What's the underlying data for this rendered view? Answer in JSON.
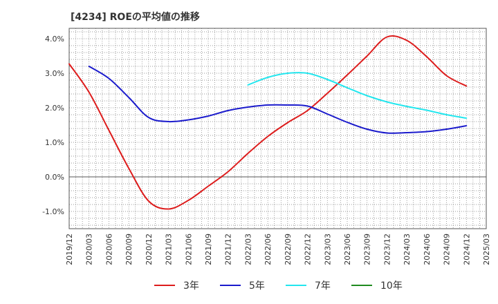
{
  "chart_data": {
    "type": "line",
    "title": "[4234]  ROEの平均値の推移",
    "xlabel": "",
    "ylabel": "",
    "ylim": [
      -1.5,
      4.3
    ],
    "yticks": [
      4.0,
      3.0,
      2.0,
      1.0,
      0.0,
      -1.0
    ],
    "ytick_labels": [
      "4.0%",
      "3.0%",
      "2.0%",
      "1.0%",
      "0.0%",
      "-1.0%"
    ],
    "x_labels": [
      "2019/12",
      "2020/03",
      "2020/06",
      "2020/09",
      "2020/12",
      "2021/03",
      "2021/06",
      "2021/09",
      "2021/12",
      "2022/03",
      "2022/06",
      "2022/09",
      "2022/12",
      "2023/03",
      "2023/06",
      "2023/09",
      "2023/12",
      "2024/03",
      "2024/06",
      "2024/09",
      "2024/12",
      "2025/03"
    ],
    "grid": true,
    "legend_position": "bottom",
    "series": [
      {
        "name": "3年",
        "color": "#dd1c1c",
        "values": [
          3.27,
          2.45,
          1.35,
          0.25,
          -0.7,
          -0.93,
          -0.68,
          -0.27,
          0.15,
          0.68,
          1.17,
          1.57,
          1.92,
          2.42,
          2.95,
          3.5,
          4.05,
          3.95,
          3.48,
          2.93,
          2.63,
          null
        ]
      },
      {
        "name": "5年",
        "color": "#1a1acc",
        "values": [
          null,
          3.2,
          2.85,
          2.3,
          1.72,
          1.6,
          1.65,
          1.76,
          1.92,
          2.02,
          2.08,
          2.08,
          2.05,
          1.82,
          1.58,
          1.38,
          1.27,
          1.28,
          1.31,
          1.38,
          1.48,
          null
        ]
      },
      {
        "name": "7年",
        "color": "#22e6ee",
        "values": [
          null,
          null,
          null,
          null,
          null,
          null,
          null,
          null,
          null,
          2.66,
          2.88,
          3.0,
          3.0,
          2.82,
          2.58,
          2.35,
          2.17,
          2.04,
          1.93,
          1.8,
          1.7,
          null
        ]
      },
      {
        "name": "10年",
        "color": "#1f8a1f",
        "values": [
          null,
          null,
          null,
          null,
          null,
          null,
          null,
          null,
          null,
          null,
          null,
          null,
          null,
          null,
          null,
          null,
          null,
          null,
          null,
          null,
          null,
          null
        ]
      }
    ]
  }
}
